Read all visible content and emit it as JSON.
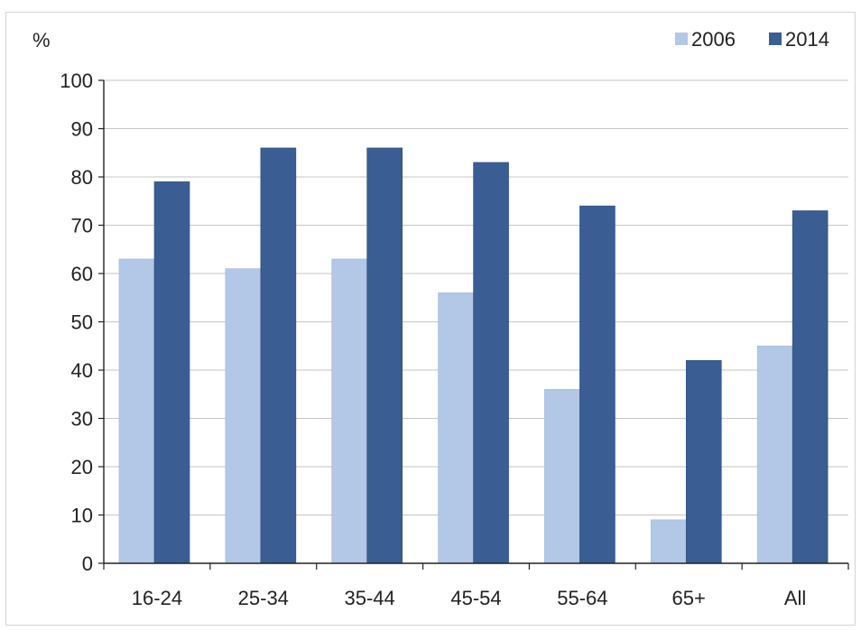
{
  "chart_data": {
    "type": "bar",
    "title": "",
    "xlabel": "",
    "ylabel": "%",
    "ylim": [
      0,
      100
    ],
    "yticks": [
      0,
      10,
      20,
      30,
      40,
      50,
      60,
      70,
      80,
      90,
      100
    ],
    "grid": true,
    "legend_position": "top-right",
    "categories": [
      "16-24",
      "25-34",
      "35-44",
      "45-54",
      "55-64",
      "65+",
      "All"
    ],
    "series": [
      {
        "name": "2006",
        "color": "#b3c7e6",
        "values": [
          63,
          61,
          63,
          56,
          36,
          9,
          45
        ]
      },
      {
        "name": "2014",
        "color": "#3a5e93",
        "values": [
          79,
          86,
          86,
          83,
          74,
          42,
          73
        ]
      }
    ]
  }
}
